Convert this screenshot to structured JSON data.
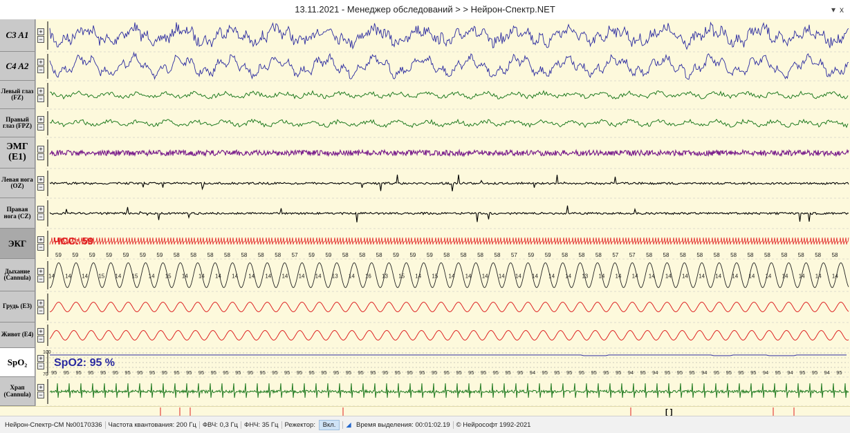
{
  "window": {
    "title": "13.11.2021 - Менеджер обследований > > Нейрон-Спектр.NET",
    "menu_glyph": "▾",
    "close_glyph": "x"
  },
  "channels": [
    {
      "label": "C3 A1",
      "style": "big",
      "color": "#2a2aa0"
    },
    {
      "label": "C4 A2",
      "style": "big",
      "color": "#2a2aa0"
    },
    {
      "label": "Левый глаз (FZ)",
      "style": "small",
      "color": "#1f7a1f"
    },
    {
      "label": "Правый глаз (FPZ)",
      "style": "small",
      "color": "#1f7a1f"
    },
    {
      "label": "ЭМГ (E1)",
      "style": "mid",
      "color": "#7a1f8c"
    },
    {
      "label": "Левая нога (OZ)",
      "style": "small",
      "color": "#000000"
    },
    {
      "label": "Правая нога (CZ)",
      "style": "small",
      "color": "#000000"
    },
    {
      "label": "ЭКГ",
      "style": "ekg",
      "color": "#cc1111"
    },
    {
      "label": "Дыхание (Cannula)",
      "style": "small",
      "color": "#222222"
    },
    {
      "label": "Грудь (E3)",
      "style": "small",
      "color": "#dd2222"
    },
    {
      "label": "Живот (E4)",
      "style": "small",
      "color": "#dd2222"
    },
    {
      "label": "SpO₂",
      "style": "spo",
      "color": "#2a2aa0"
    },
    {
      "label": "Храп (Cannula)",
      "style": "small",
      "color": "#1f7a1f"
    }
  ],
  "ekg": {
    "heart_rate_label": "ЧСС: 59",
    "beat_values": [
      "59",
      "59",
      "59",
      "59",
      "59",
      "59",
      "59",
      "58",
      "58",
      "58",
      "58",
      "58",
      "58",
      "58",
      "57",
      "59",
      "59",
      "58",
      "58",
      "58",
      "59",
      "59",
      "59",
      "58",
      "58",
      "58",
      "58",
      "57",
      "59",
      "59",
      "58",
      "58",
      "58",
      "57",
      "57",
      "58",
      "58",
      "58",
      "58",
      "58",
      "58",
      "58",
      "58",
      "58",
      "58",
      "58",
      "58"
    ]
  },
  "respiration": {
    "rate_values": [
      "14",
      "14",
      "14",
      "15",
      "14",
      "15",
      "14",
      "15",
      "14",
      "14",
      "14",
      "14",
      "14",
      "14",
      "14",
      "14",
      "14",
      "13",
      "14",
      "16",
      "13",
      "15",
      "14",
      "15",
      "14",
      "14",
      "14",
      "14",
      "14",
      "14",
      "14",
      "14",
      "13",
      "14",
      "14",
      "14",
      "14",
      "14",
      "14",
      "14",
      "14",
      "14",
      "14",
      "14",
      "14",
      "14",
      "14",
      "14"
    ]
  },
  "spo2": {
    "value_label": "SpO2: 95 %",
    "scale_max": "100",
    "scale_min": "70",
    "readings": [
      "95",
      "95",
      "95",
      "95",
      "95",
      "95",
      "95",
      "95",
      "95",
      "95",
      "95",
      "95",
      "95",
      "95",
      "95",
      "95",
      "95",
      "95",
      "95",
      "95",
      "95",
      "95",
      "95",
      "95",
      "95",
      "95",
      "95",
      "95",
      "95",
      "95",
      "95",
      "95",
      "95",
      "95",
      "95",
      "95",
      "95",
      "95",
      "95",
      "94",
      "95",
      "95",
      "95",
      "95",
      "95",
      "95",
      "95",
      "94",
      "95",
      "94",
      "95",
      "95",
      "95",
      "94",
      "95",
      "95",
      "95",
      "95",
      "94",
      "95",
      "94",
      "95",
      "95",
      "94",
      "95"
    ]
  },
  "controls": {
    "plus": "+",
    "minus": "−"
  },
  "colors": {
    "trace_background": "#fdf9dc",
    "ekg_accent": "#e02020",
    "spo2_accent": "#2a2aa0",
    "selection_mark": "#e02020"
  },
  "status": {
    "device": "Нейрон-Спектр-СМ №00170336",
    "sampling": "Частота квантования:  200 Гц",
    "hpf": "ФВЧ:  0,3 Гц",
    "lpf": "ФНЧ:  35 Гц",
    "notch_label": "Режектор:",
    "notch_value": "Вкл.",
    "selection_time": "Время выделения: 00:01:02.19",
    "copyright": "© Нейрософт 1992-2021"
  },
  "selection_bracket": "[ ]"
}
